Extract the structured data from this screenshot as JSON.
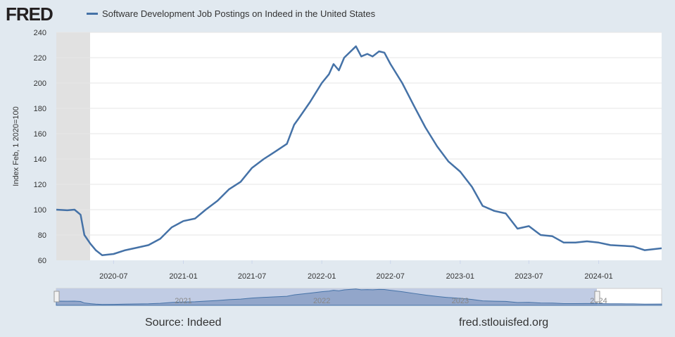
{
  "header": {
    "logo": "FRED",
    "series_title": "Software Development Job Postings on Indeed in the United States"
  },
  "footer": {
    "source": "Source: Indeed",
    "site": "fred.stlouisfed.org"
  },
  "colors": {
    "line": "#4572a7",
    "recession": "#e1e1e1",
    "navigator": "#8a9fc6"
  },
  "navigator": {
    "labels": [
      "2021",
      "2022",
      "2023",
      "2024"
    ]
  },
  "chart_data": {
    "type": "line",
    "title": "Software Development Job Postings on Indeed in the United States",
    "ylabel": "Index Feb, 1 2020=100",
    "xlabel": "",
    "ylim": [
      60,
      240
    ],
    "yticks": [
      60,
      80,
      100,
      120,
      140,
      160,
      180,
      200,
      220,
      240
    ],
    "xlim": [
      "2020-02-01",
      "2024-06-15"
    ],
    "xticks": [
      "2020-07",
      "2021-01",
      "2021-07",
      "2022-01",
      "2022-07",
      "2023-01",
      "2023-07",
      "2024-01"
    ],
    "grid": true,
    "recession": [
      "2020-02-01",
      "2020-04-30"
    ],
    "series": [
      {
        "name": "Software Development Job Postings on Indeed in the United States",
        "x": [
          "2020-02-01",
          "2020-03-01",
          "2020-03-20",
          "2020-04-05",
          "2020-04-15",
          "2020-05-01",
          "2020-05-15",
          "2020-06-01",
          "2020-07-01",
          "2020-08-01",
          "2020-09-01",
          "2020-10-01",
          "2020-11-01",
          "2020-12-01",
          "2021-01-01",
          "2021-02-01",
          "2021-03-01",
          "2021-04-01",
          "2021-05-01",
          "2021-06-01",
          "2021-07-01",
          "2021-08-01",
          "2021-09-01",
          "2021-10-01",
          "2021-10-20",
          "2021-11-01",
          "2021-12-01",
          "2022-01-01",
          "2022-01-20",
          "2022-02-01",
          "2022-02-15",
          "2022-03-01",
          "2022-04-01",
          "2022-04-15",
          "2022-05-01",
          "2022-05-15",
          "2022-06-01",
          "2022-06-15",
          "2022-07-01",
          "2022-08-01",
          "2022-09-01",
          "2022-10-01",
          "2022-11-01",
          "2022-12-01",
          "2023-01-01",
          "2023-02-01",
          "2023-03-01",
          "2023-04-01",
          "2023-05-01",
          "2023-06-01",
          "2023-07-01",
          "2023-08-01",
          "2023-09-01",
          "2023-10-01",
          "2023-11-01",
          "2023-12-01",
          "2024-01-01",
          "2024-02-01",
          "2024-03-01",
          "2024-04-01",
          "2024-05-01",
          "2024-06-15"
        ],
        "values": [
          100,
          99.5,
          100,
          96,
          80,
          73,
          68,
          64,
          65,
          68,
          70,
          72,
          77,
          86,
          91,
          93,
          100,
          107,
          116,
          122,
          133,
          140,
          146,
          152,
          167,
          172,
          185,
          200,
          207,
          215,
          210,
          220,
          229,
          221,
          223,
          221,
          225,
          224,
          215,
          200,
          182,
          165,
          150,
          138,
          130,
          118,
          103,
          99,
          97,
          85,
          87,
          80,
          79,
          74,
          74,
          75,
          74,
          72,
          71.5,
          71,
          68,
          69.5
        ]
      }
    ]
  }
}
